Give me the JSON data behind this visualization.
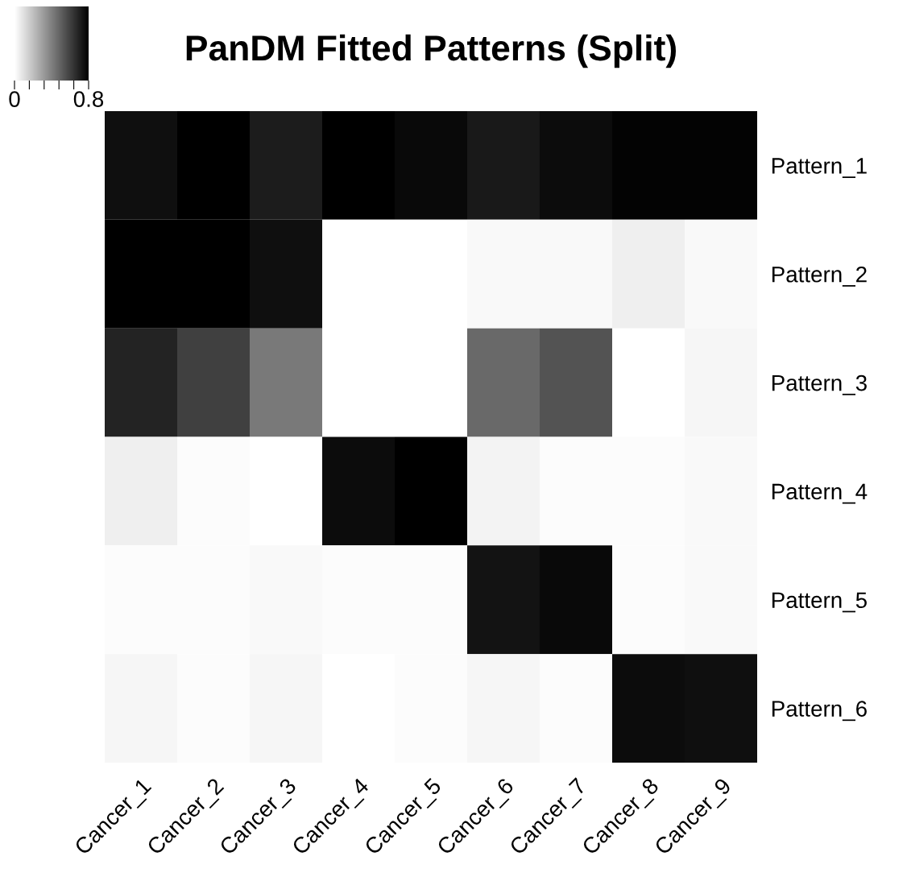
{
  "chart_data": {
    "type": "heatmap",
    "title": "PanDM Fitted Patterns (Split)",
    "categories": [
      "Cancer_1",
      "Cancer_2",
      "Cancer_3",
      "Cancer_4",
      "Cancer_5",
      "Cancer_6",
      "Cancer_7",
      "Cancer_8",
      "Cancer_9"
    ],
    "y_categories": [
      "Pattern_1",
      "Pattern_2",
      "Pattern_3",
      "Pattern_4",
      "Pattern_5",
      "Pattern_6"
    ],
    "cells": [
      [
        0.75,
        0.8,
        0.71,
        0.8,
        0.77,
        0.72,
        0.76,
        0.79,
        0.79
      ],
      [
        0.8,
        0.8,
        0.75,
        0,
        0,
        0.02,
        0.02,
        0.05,
        0.02
      ],
      [
        0.69,
        0.6,
        0.42,
        0,
        0,
        0.47,
        0.54,
        0,
        0.03
      ],
      [
        0.05,
        0.01,
        0,
        0.76,
        0.8,
        0.04,
        0.01,
        0.01,
        0.02
      ],
      [
        0.01,
        0.01,
        0.02,
        0.01,
        0.01,
        0.74,
        0.77,
        0.01,
        0.02
      ],
      [
        0.03,
        0.01,
        0.03,
        0,
        0.01,
        0.03,
        0.01,
        0.76,
        0.75
      ]
    ],
    "clim": [
      0,
      0.8
    ],
    "cticks": [
      0,
      {
        "value": 0.16,
        "label": null
      },
      {
        "value": 0.32,
        "label": null
      },
      {
        "value": 0.48,
        "label": null
      },
      {
        "value": 0.64,
        "label": null
      },
      0.8
    ]
  }
}
